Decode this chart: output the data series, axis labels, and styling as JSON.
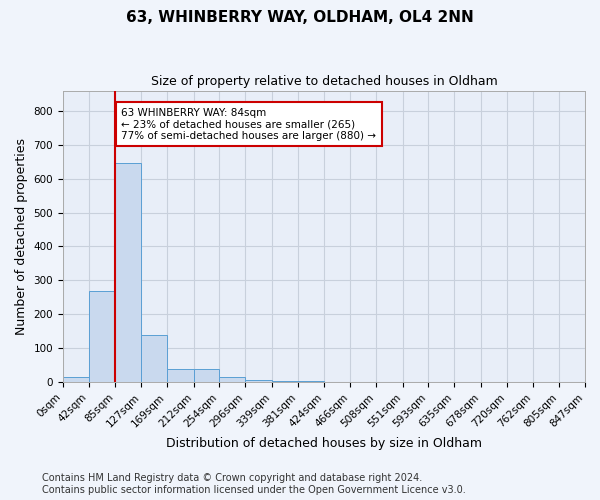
{
  "title": "63, WHINBERRY WAY, OLDHAM, OL4 2NN",
  "subtitle": "Size of property relative to detached houses in Oldham",
  "xlabel": "Distribution of detached houses by size in Oldham",
  "ylabel": "Number of detached properties",
  "bar_values": [
    15,
    270,
    645,
    140,
    40,
    40,
    15,
    5,
    2,
    2,
    1,
    1,
    1,
    1,
    1,
    1,
    1,
    1,
    1,
    1
  ],
  "bin_edges": [
    0,
    42,
    85,
    127,
    169,
    212,
    254,
    296,
    339,
    381,
    424,
    466,
    508,
    551,
    593,
    635,
    678,
    720,
    762,
    805,
    847
  ],
  "tick_labels": [
    "0sqm",
    "42sqm",
    "85sqm",
    "127sqm",
    "169sqm",
    "212sqm",
    "254sqm",
    "296sqm",
    "339sqm",
    "381sqm",
    "424sqm",
    "466sqm",
    "508sqm",
    "551sqm",
    "593sqm",
    "635sqm",
    "678sqm",
    "720sqm",
    "762sqm",
    "805sqm",
    "847sqm"
  ],
  "bar_color": "#c9d9ee",
  "bar_edge_color": "#5a9fd4",
  "red_line_x": 84,
  "red_line_color": "#cc0000",
  "annotation_text": "63 WHINBERRY WAY: 84sqm\n← 23% of detached houses are smaller (265)\n77% of semi-detached houses are larger (880) →",
  "annotation_box_color": "#ffffff",
  "annotation_box_edge": "#cc0000",
  "ylim": [
    0,
    860
  ],
  "yticks": [
    0,
    100,
    200,
    300,
    400,
    500,
    600,
    700,
    800
  ],
  "footnote": "Contains HM Land Registry data © Crown copyright and database right 2024.\nContains public sector information licensed under the Open Government Licence v3.0.",
  "fig_background_color": "#f0f4fb",
  "plot_background": "#e8eef8",
  "grid_color": "#c8d0dc",
  "title_fontsize": 11,
  "subtitle_fontsize": 9,
  "axis_label_fontsize": 9,
  "tick_fontsize": 7.5,
  "footnote_fontsize": 7,
  "annot_fontsize": 7.5
}
